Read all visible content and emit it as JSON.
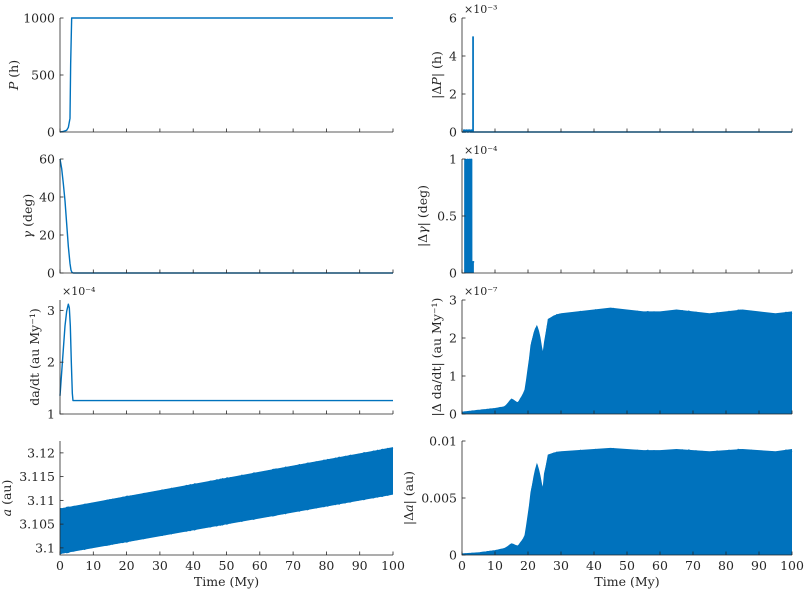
{
  "chart_data": [
    {
      "id": "P",
      "type": "line",
      "ylabel": "P (h)",
      "xlabel": "",
      "xlim": [
        0,
        100
      ],
      "ylim": [
        0,
        1000
      ],
      "yticks": [
        0,
        500,
        1000
      ],
      "ytick_labels": [
        "0",
        "500",
        "1000"
      ],
      "xticks": [
        0,
        10,
        20,
        30,
        40,
        50,
        60,
        70,
        80,
        90,
        100
      ],
      "xtick_labels": [],
      "exponent": "",
      "series": [
        {
          "color": "#0072BD",
          "style": "line",
          "x": [
            0,
            1,
            2,
            2.5,
            3,
            3.2,
            3.5,
            100
          ],
          "y": [
            0,
            5,
            15,
            40,
            120,
            600,
            1000,
            1000
          ]
        }
      ]
    },
    {
      "id": "dP",
      "type": "line",
      "ylabel": "|ΔP| (h)",
      "xlabel": "",
      "xlim": [
        0,
        100
      ],
      "ylim": [
        0,
        0.006
      ],
      "yticks": [
        0,
        0.002,
        0.004,
        0.006
      ],
      "ytick_labels": [
        "0",
        "2",
        "4",
        "6"
      ],
      "xticks": [
        0,
        10,
        20,
        30,
        40,
        50,
        60,
        70,
        80,
        90,
        100
      ],
      "xtick_labels": [],
      "exponent": "×10⁻³",
      "series": [
        {
          "color": "#0072BD",
          "style": "line",
          "x": [
            0,
            0.5,
            0.5,
            0.8,
            0.8,
            1.2,
            1.2,
            1.6,
            1.6,
            2.0,
            2.0,
            2.4,
            2.4,
            2.8,
            2.8,
            3.0,
            3.0,
            3.3,
            3.3,
            3.4,
            3.4,
            3.5,
            3.5,
            100
          ],
          "y": [
            0,
            0,
            0.0001,
            0.0001,
            0,
            0,
            0.0001,
            0.0001,
            0,
            0,
            0.0001,
            0.0001,
            0,
            0,
            0.0001,
            0.0001,
            0,
            0,
            0.005,
            0.005,
            0,
            0,
            0,
            0
          ]
        }
      ]
    },
    {
      "id": "gamma",
      "type": "line",
      "ylabel": "γ (deg)",
      "xlabel": "",
      "xlim": [
        0,
        100
      ],
      "ylim": [
        0,
        60
      ],
      "yticks": [
        0,
        20,
        40,
        60
      ],
      "ytick_labels": [
        "0",
        "20",
        "40",
        "60"
      ],
      "xticks": [
        0,
        10,
        20,
        30,
        40,
        50,
        60,
        70,
        80,
        90,
        100
      ],
      "xtick_labels": [],
      "exponent": "",
      "series": [
        {
          "color": "#0072BD",
          "style": "line",
          "x": [
            0,
            0.5,
            1,
            1.5,
            2,
            2.5,
            3,
            3.3,
            3.6,
            4,
            100
          ],
          "y": [
            60,
            55,
            47,
            38,
            26,
            14,
            5,
            1.5,
            0.3,
            0,
            0
          ]
        }
      ]
    },
    {
      "id": "dgamma",
      "type": "area",
      "ylabel": "|Δγ| (deg)",
      "xlabel": "",
      "xlim": [
        0,
        100
      ],
      "ylim": [
        0,
        0.0001
      ],
      "yticks": [
        0,
        5e-05,
        0.0001
      ],
      "ytick_labels": [
        "0",
        "0.5",
        "1"
      ],
      "xticks": [
        0,
        10,
        20,
        30,
        40,
        50,
        60,
        70,
        80,
        90,
        100
      ],
      "xtick_labels": [],
      "exponent": "×10⁻⁴",
      "series": [
        {
          "color": "#0072BD",
          "style": "area",
          "x": [
            0.8,
            0.8,
            3.0,
            3.0,
            3.2,
            3.2,
            3.6,
            3.6
          ],
          "y": [
            0,
            0.0001,
            0.0001,
            9e-06,
            9e-06,
            1e-05,
            1e-05,
            0
          ]
        }
      ]
    },
    {
      "id": "dadt",
      "type": "line",
      "ylabel": "da/dt (au My⁻¹)",
      "xlabel": "",
      "xlim": [
        0,
        100
      ],
      "ylim": [
        0.0001,
        0.00032
      ],
      "yticks": [
        0.0001,
        0.0002,
        0.0003
      ],
      "ytick_labels": [
        "1",
        "2",
        "3"
      ],
      "xticks": [
        0,
        10,
        20,
        30,
        40,
        50,
        60,
        70,
        80,
        90,
        100
      ],
      "xtick_labels": [],
      "exponent": "×10⁻⁴",
      "series": [
        {
          "color": "#0072BD",
          "style": "line",
          "x": [
            0,
            0.5,
            1,
            1.5,
            2,
            2.5,
            2.8,
            3.1,
            3.4,
            3.7,
            3.9,
            4.0,
            100
          ],
          "y": [
            0.000135,
            0.00018,
            0.000225,
            0.00027,
            0.000298,
            0.000312,
            0.000305,
            0.00027,
            0.0002,
            0.00014,
            0.000126,
            0.000126,
            0.000126
          ]
        }
      ]
    },
    {
      "id": "ddadt",
      "type": "area",
      "ylabel": "|Δ da/dt| (au My⁻¹)",
      "xlabel": "",
      "xlim": [
        0,
        100
      ],
      "ylim": [
        0,
        3e-07
      ],
      "yticks": [
        0,
        1e-07,
        2e-07,
        3e-07
      ],
      "ytick_labels": [
        "0",
        "1",
        "2",
        "3"
      ],
      "xticks": [
        0,
        10,
        20,
        30,
        40,
        50,
        60,
        70,
        80,
        90,
        100
      ],
      "xtick_labels": [],
      "exponent": "×10⁻⁷",
      "series": [
        {
          "color": "#0072BD",
          "style": "area",
          "x": [
            0,
            5,
            10,
            13,
            15,
            17,
            19,
            20,
            21,
            22,
            22.7,
            23.5,
            24.5,
            25,
            26,
            28,
            30,
            35,
            40,
            45,
            50,
            55,
            60,
            65,
            70,
            75,
            80,
            85,
            90,
            95,
            100
          ],
          "y": [
            5e-09,
            1e-08,
            1.5e-08,
            2e-08,
            4e-08,
            3e-08,
            6e-08,
            1.2e-07,
            1.9e-07,
            2.2e-07,
            2.35e-07,
            2.1e-07,
            1.6e-07,
            1.9e-07,
            2.5e-07,
            2.6e-07,
            2.65e-07,
            2.7e-07,
            2.75e-07,
            2.8e-07,
            2.75e-07,
            2.7e-07,
            2.7e-07,
            2.75e-07,
            2.7e-07,
            2.65e-07,
            2.7e-07,
            2.75e-07,
            2.7e-07,
            2.65e-07,
            2.7e-07
          ]
        }
      ]
    },
    {
      "id": "a",
      "type": "area",
      "ylabel": "a (au)",
      "xlabel": "Time (My)",
      "xlim": [
        0,
        100
      ],
      "ylim": [
        3.0985,
        3.1225
      ],
      "yticks": [
        3.1,
        3.105,
        3.11,
        3.115,
        3.12
      ],
      "ytick_labels": [
        "3.1",
        "3.105",
        "3.11",
        "3.115",
        "3.12"
      ],
      "xticks": [
        0,
        10,
        20,
        30,
        40,
        50,
        60,
        70,
        80,
        90,
        100
      ],
      "xtick_labels": [
        "0",
        "10",
        "20",
        "30",
        "40",
        "50",
        "60",
        "70",
        "80",
        "90",
        "100"
      ],
      "exponent": "",
      "series": [
        {
          "color": "#0072BD",
          "style": "band",
          "x": [
            0,
            100
          ],
          "y_low": [
            3.0987,
            3.1112
          ],
          "y_high": [
            3.1083,
            3.1212
          ]
        }
      ]
    },
    {
      "id": "da",
      "type": "area",
      "ylabel": "|Δa| (au)",
      "xlabel": "Time (My)",
      "xlim": [
        0,
        100
      ],
      "ylim": [
        0,
        0.01
      ],
      "yticks": [
        0,
        0.005,
        0.01
      ],
      "ytick_labels": [
        "0",
        "0.005",
        "0.01"
      ],
      "xticks": [
        0,
        10,
        20,
        30,
        40,
        50,
        60,
        70,
        80,
        90,
        100
      ],
      "xtick_labels": [
        "0",
        "10",
        "20",
        "30",
        "40",
        "50",
        "60",
        "70",
        "80",
        "90",
        "100"
      ],
      "exponent": "",
      "series": [
        {
          "color": "#0072BD",
          "style": "area",
          "x": [
            0,
            5,
            10,
            13,
            15,
            17,
            19,
            20,
            21,
            22,
            22.7,
            23.5,
            24.5,
            25,
            26,
            28,
            30,
            35,
            40,
            45,
            50,
            55,
            60,
            65,
            70,
            75,
            80,
            85,
            90,
            95,
            100
          ],
          "y": [
            0.0001,
            0.0002,
            0.0004,
            0.0006,
            0.001,
            0.0008,
            0.0016,
            0.0035,
            0.0058,
            0.0072,
            0.0081,
            0.0072,
            0.0058,
            0.0072,
            0.0088,
            0.009,
            0.0091,
            0.0092,
            0.0093,
            0.0094,
            0.0093,
            0.0092,
            0.0092,
            0.0093,
            0.0092,
            0.0091,
            0.0092,
            0.0093,
            0.0092,
            0.0091,
            0.0093
          ]
        }
      ]
    }
  ]
}
